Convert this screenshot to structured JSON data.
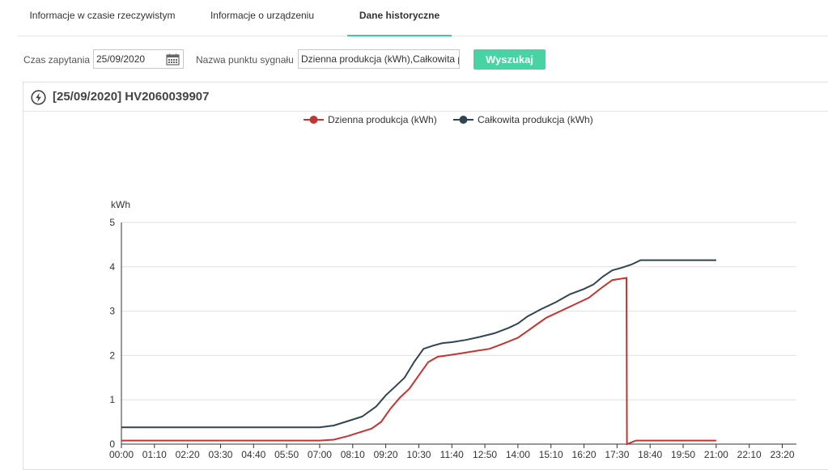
{
  "tabs": [
    {
      "label": "Informacje w czasie rzeczywistym",
      "active": false
    },
    {
      "label": "Informacje o urządzeniu",
      "active": false
    },
    {
      "label": "Dane historyczne",
      "active": true
    }
  ],
  "query": {
    "time_label": "Czas zapytania",
    "date_value": "25/09/2020",
    "signal_label": "Nazwa punktu sygnału",
    "signal_value": "Dzienna produkcja (kWh),Całkowita produkcja (kWh)",
    "search_button": "Wyszukaj",
    "icons": {
      "calendar": "calendar-icon",
      "panel": "lightning-circle-icon"
    }
  },
  "panel": {
    "title": "[25/09/2020] HV2060039907"
  },
  "colors": {
    "accent": "#47d3a4",
    "daily": "#c23531",
    "total": "#2f4554"
  },
  "chart_data": {
    "type": "line",
    "ylabel": "kWh",
    "ylim": [
      0,
      5
    ],
    "yticks": [
      0,
      1,
      2,
      3,
      4,
      5
    ],
    "xticks": [
      "00:00",
      "01:10",
      "02:20",
      "03:30",
      "04:40",
      "05:50",
      "07:00",
      "08:10",
      "09:20",
      "10:30",
      "11:40",
      "12:50",
      "14:00",
      "15:10",
      "16:20",
      "17:30",
      "18:40",
      "19:50",
      "21:00",
      "22:10",
      "23:20"
    ],
    "xlim_minutes": [
      0,
      1440
    ],
    "legend_position": "top-center",
    "grid": true,
    "series": [
      {
        "name": "Dzienna produkcja (kWh)",
        "color": "#c23531",
        "points": [
          [
            "00:00",
            0.08
          ],
          [
            "07:00",
            0.08
          ],
          [
            "07:30",
            0.1
          ],
          [
            "08:00",
            0.18
          ],
          [
            "08:20",
            0.25
          ],
          [
            "08:50",
            0.35
          ],
          [
            "09:10",
            0.5
          ],
          [
            "09:30",
            0.8
          ],
          [
            "09:50",
            1.05
          ],
          [
            "10:10",
            1.25
          ],
          [
            "10:30",
            1.55
          ],
          [
            "10:50",
            1.85
          ],
          [
            "11:10",
            1.97
          ],
          [
            "11:30",
            2.0
          ],
          [
            "12:00",
            2.05
          ],
          [
            "12:30",
            2.1
          ],
          [
            "13:00",
            2.15
          ],
          [
            "13:30",
            2.27
          ],
          [
            "14:00",
            2.4
          ],
          [
            "14:20",
            2.55
          ],
          [
            "14:40",
            2.7
          ],
          [
            "15:00",
            2.85
          ],
          [
            "15:30",
            3.0
          ],
          [
            "16:00",
            3.15
          ],
          [
            "16:30",
            3.3
          ],
          [
            "17:00",
            3.55
          ],
          [
            "17:20",
            3.7
          ],
          [
            "17:50",
            3.75
          ],
          [
            "17:51",
            0.0
          ],
          [
            "18:10",
            0.08
          ],
          [
            "21:00",
            0.08
          ]
        ]
      },
      {
        "name": "Całkowita produkcja (kWh)",
        "color": "#2f4554",
        "points": [
          [
            "00:00",
            0.38
          ],
          [
            "07:00",
            0.38
          ],
          [
            "07:30",
            0.42
          ],
          [
            "08:00",
            0.52
          ],
          [
            "08:30",
            0.62
          ],
          [
            "09:00",
            0.85
          ],
          [
            "09:20",
            1.1
          ],
          [
            "09:40",
            1.3
          ],
          [
            "10:00",
            1.5
          ],
          [
            "10:20",
            1.85
          ],
          [
            "10:40",
            2.15
          ],
          [
            "11:00",
            2.22
          ],
          [
            "11:20",
            2.28
          ],
          [
            "11:40",
            2.3
          ],
          [
            "12:10",
            2.35
          ],
          [
            "12:40",
            2.42
          ],
          [
            "13:10",
            2.5
          ],
          [
            "13:40",
            2.62
          ],
          [
            "14:00",
            2.72
          ],
          [
            "14:20",
            2.88
          ],
          [
            "14:50",
            3.05
          ],
          [
            "15:20",
            3.2
          ],
          [
            "15:50",
            3.38
          ],
          [
            "16:20",
            3.5
          ],
          [
            "16:40",
            3.6
          ],
          [
            "17:00",
            3.78
          ],
          [
            "17:20",
            3.92
          ],
          [
            "17:40",
            3.98
          ],
          [
            "18:00",
            4.05
          ],
          [
            "18:20",
            4.15
          ],
          [
            "21:00",
            4.15
          ]
        ]
      }
    ]
  }
}
